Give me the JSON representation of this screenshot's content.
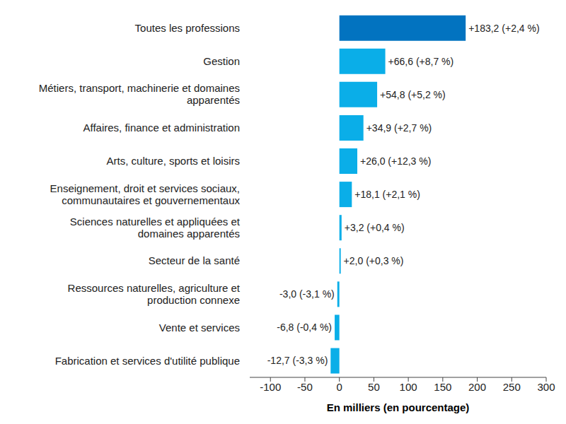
{
  "chart_data": {
    "type": "bar",
    "orientation": "horizontal",
    "categories": [
      "Toutes les professions",
      "Gestion",
      "Métiers, transport, machinerie et domaines apparentés",
      "Affaires, finance et administration",
      "Arts, culture, sports et loisirs",
      "Enseignement, droit et services sociaux, communautaires et gouvernementaux",
      "Sciences naturelles et appliquées et domaines apparentés",
      "Secteur de la santé",
      "Ressources naturelles, agriculture et production connexe",
      "Vente et services",
      "Fabrication et services d'utilité publique"
    ],
    "values": [
      183.2,
      66.6,
      54.8,
      34.9,
      26.0,
      18.1,
      3.2,
      2.0,
      -3.0,
      -6.8,
      -12.7
    ],
    "value_labels": [
      "+183,2 (+2,4 %)",
      "+66,6 (+8,7 %)",
      "+54,8 (+5,2 %)",
      "+34,9 (+2,7 %)",
      "+26,0 (+12,3 %)",
      "+18,1 (+2,1 %)",
      "+3,2 (+0,4 %)",
      "+2,0 (+0,3 %)",
      "-3,0 (-3,1 %)",
      "-6,8 (-0,4 %)",
      "-12,7 (-3,3 %)"
    ],
    "colors": [
      "#0273c0",
      "#0aaee8",
      "#0aaee8",
      "#0aaee8",
      "#0aaee8",
      "#0aaee8",
      "#0aaee8",
      "#0aaee8",
      "#0aaee8",
      "#0aaee8",
      "#0aaee8"
    ],
    "xlim": [
      -130,
      300
    ],
    "xticks": [
      -100,
      -50,
      0,
      50,
      100,
      150,
      200,
      250,
      300
    ],
    "x_label": "En milliers (en pourcentage)",
    "grid": false,
    "data_labels": true
  }
}
